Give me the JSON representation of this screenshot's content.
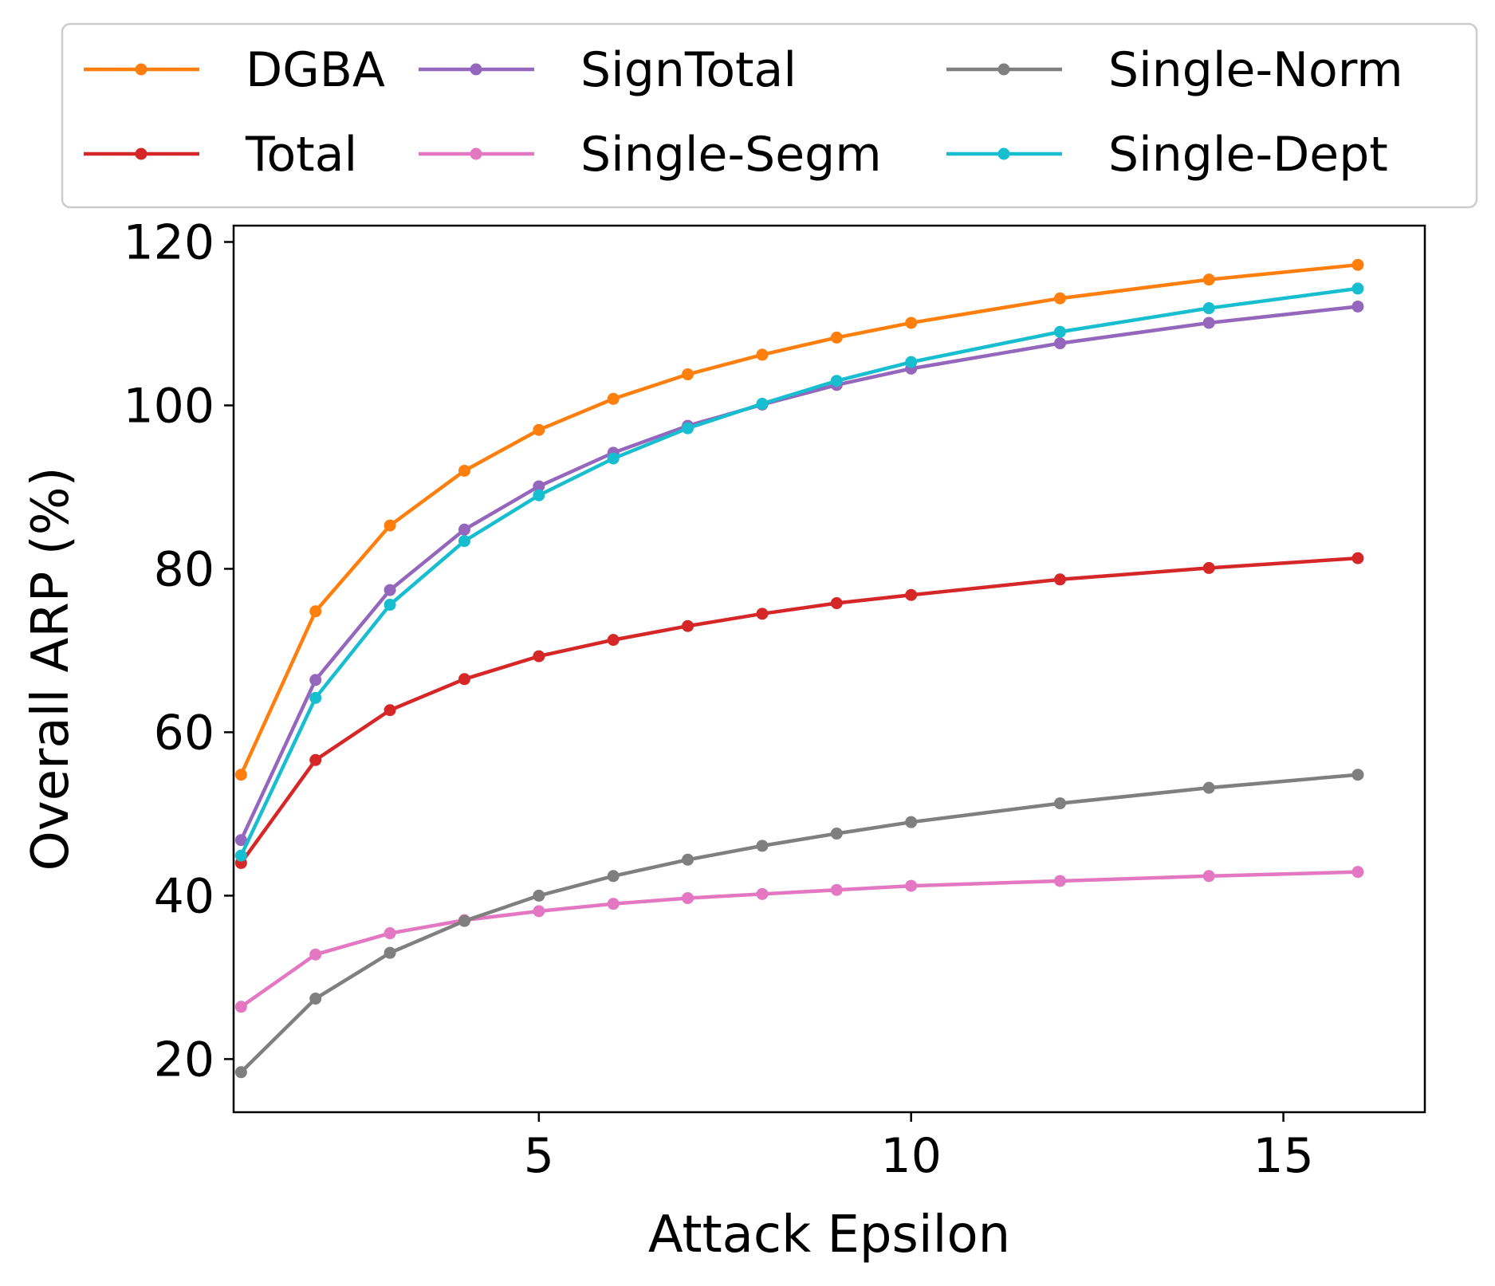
{
  "chart_data": {
    "type": "line",
    "xlabel": "Attack Epsilon",
    "ylabel": "Overall ARP (%)",
    "xlim": [
      0.9,
      16.9
    ],
    "ylim": [
      13.5,
      122
    ],
    "xticks": [
      5,
      10,
      15
    ],
    "yticks": [
      20,
      40,
      60,
      80,
      100,
      120
    ],
    "legend_position": "top, above plot",
    "x": [
      1,
      2,
      3,
      4,
      5,
      6,
      7,
      8,
      9,
      10,
      12,
      14,
      16
    ],
    "series": [
      {
        "name": "DGBA",
        "color": "#ff7f0e",
        "values": [
          54.8,
          74.8,
          85.3,
          92.0,
          97.0,
          100.8,
          103.8,
          106.2,
          108.3,
          110.1,
          113.1,
          115.4,
          117.2
        ]
      },
      {
        "name": "Total",
        "color": "#d62728",
        "values": [
          44.0,
          56.6,
          62.7,
          66.5,
          69.3,
          71.3,
          73.0,
          74.5,
          75.8,
          76.8,
          78.7,
          80.1,
          81.3
        ]
      },
      {
        "name": "SignTotal",
        "color": "#9467bd",
        "values": [
          46.8,
          66.4,
          77.4,
          84.8,
          90.1,
          94.2,
          97.5,
          100.1,
          102.5,
          104.5,
          107.6,
          110.1,
          112.1
        ]
      },
      {
        "name": "Single-Segm",
        "color": "#e377c2",
        "values": [
          26.4,
          32.8,
          35.4,
          37.0,
          38.1,
          39.0,
          39.7,
          40.2,
          40.7,
          41.2,
          41.8,
          42.4,
          42.9
        ]
      },
      {
        "name": "Single-Norm",
        "color": "#7f7f7f",
        "values": [
          18.4,
          27.4,
          33.0,
          36.9,
          40.0,
          42.4,
          44.4,
          46.1,
          47.6,
          49.0,
          51.3,
          53.2,
          54.8
        ]
      },
      {
        "name": "Single-Dept",
        "color": "#17becf",
        "values": [
          44.9,
          64.2,
          75.6,
          83.4,
          89.0,
          93.5,
          97.2,
          100.2,
          103.0,
          105.3,
          109.0,
          111.9,
          114.3
        ]
      }
    ]
  }
}
